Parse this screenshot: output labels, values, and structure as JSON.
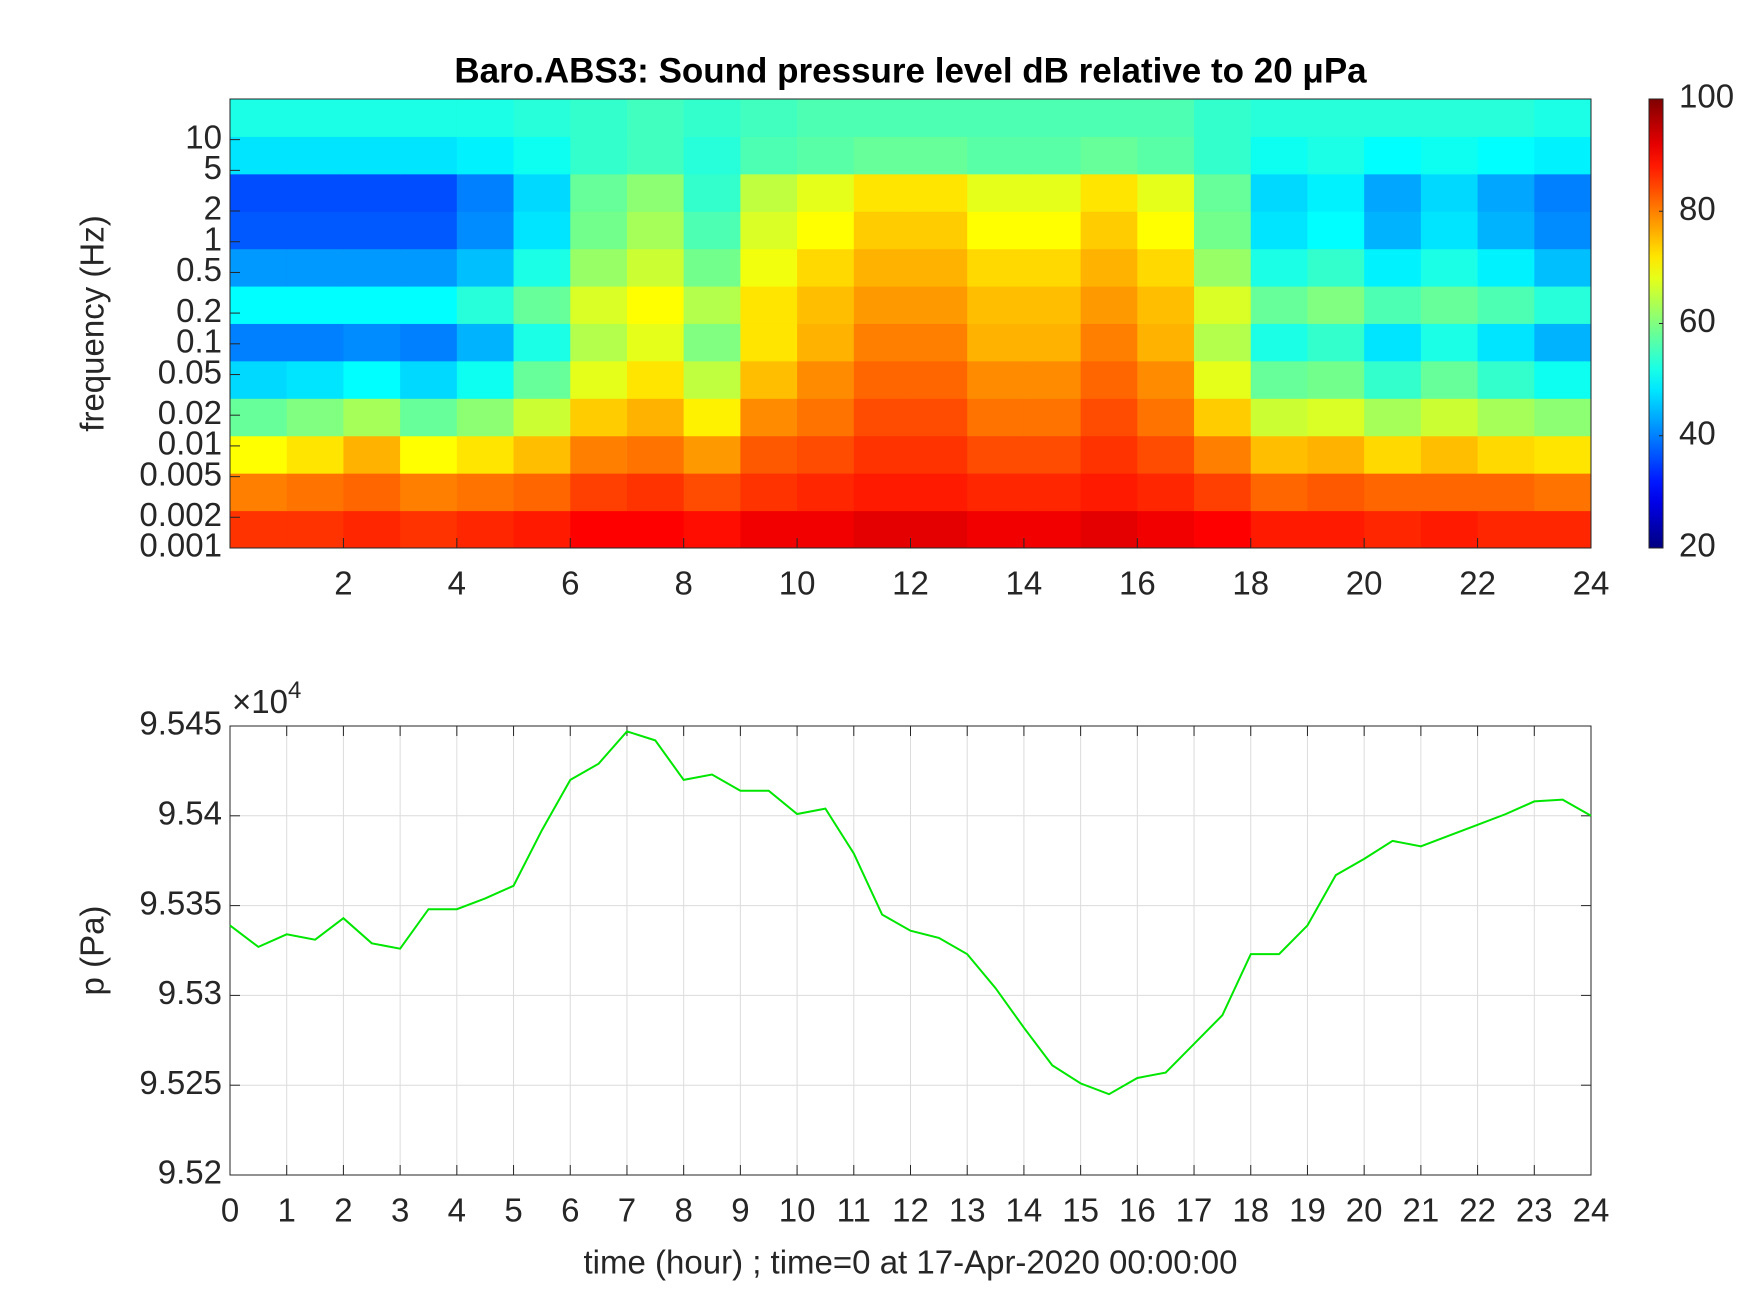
{
  "chart_data": [
    {
      "type": "heatmap",
      "title": "Baro.ABS3: Sound pressure level dB relative to 20 μPa",
      "ylabel": "frequency (Hz)",
      "ylog": true,
      "colormap": "jet",
      "x": [
        0.5,
        1.5,
        2.5,
        3.5,
        4.5,
        5.5,
        6.5,
        7.5,
        8.5,
        9.5,
        10.5,
        11.5,
        12.5,
        13.5,
        14.5,
        15.5,
        16.5,
        17.5,
        18.5,
        19.5,
        20.5,
        21.5,
        22.5,
        23.5
      ],
      "y": [
        0.00152,
        0.00355,
        0.00824,
        0.0192,
        0.0446,
        0.104,
        0.241,
        0.561,
        1.3,
        3.03,
        7.05,
        16.4
      ],
      "z": [
        [
          86,
          86,
          87,
          86,
          87,
          88,
          90,
          90,
          89,
          91,
          91,
          92,
          92,
          91,
          91,
          92,
          91,
          90,
          88,
          88,
          87,
          88,
          87,
          87
        ],
        [
          80,
          81,
          82,
          80,
          81,
          82,
          85,
          86,
          84,
          86,
          87,
          88,
          88,
          87,
          87,
          88,
          87,
          85,
          82,
          83,
          82,
          82,
          82,
          81
        ],
        [
          70,
          72,
          76,
          70,
          72,
          75,
          80,
          81,
          78,
          83,
          84,
          86,
          86,
          84,
          84,
          86,
          84,
          80,
          75,
          76,
          73,
          75,
          73,
          72
        ],
        [
          58,
          60,
          63,
          58,
          61,
          66,
          74,
          76,
          71,
          79,
          81,
          84,
          84,
          81,
          81,
          84,
          81,
          74,
          66,
          67,
          63,
          66,
          63,
          61
        ],
        [
          47,
          48,
          50,
          47,
          51,
          58,
          68,
          72,
          65,
          75,
          79,
          82,
          82,
          79,
          79,
          82,
          79,
          68,
          58,
          59,
          54,
          58,
          54,
          51
        ],
        [
          40,
          40,
          41,
          40,
          44,
          52,
          64,
          68,
          60,
          72,
          76,
          80,
          80,
          76,
          76,
          80,
          76,
          64,
          52,
          54,
          48,
          52,
          48,
          44
        ],
        [
          50,
          50,
          50,
          50,
          53,
          58,
          67,
          70,
          64,
          72,
          75,
          78,
          78,
          75,
          75,
          78,
          75,
          67,
          58,
          60,
          56,
          58,
          56,
          53
        ],
        [
          42,
          42,
          42,
          42,
          45,
          52,
          62,
          66,
          59,
          69,
          73,
          76,
          76,
          73,
          73,
          76,
          73,
          62,
          52,
          54,
          49,
          52,
          49,
          45
        ],
        [
          37,
          37,
          37,
          37,
          41,
          48,
          59,
          63,
          56,
          67,
          70,
          74,
          74,
          70,
          70,
          74,
          70,
          59,
          48,
          50,
          44,
          48,
          44,
          41
        ],
        [
          36,
          36,
          36,
          36,
          40,
          47,
          58,
          61,
          54,
          65,
          68,
          72,
          72,
          68,
          68,
          72,
          68,
          58,
          47,
          49,
          43,
          47,
          43,
          40
        ],
        [
          48,
          48,
          48,
          48,
          49,
          51,
          54,
          55,
          53,
          56,
          57,
          58,
          58,
          57,
          57,
          58,
          57,
          54,
          51,
          52,
          50,
          51,
          50,
          49
        ],
        [
          52,
          52,
          52,
          52,
          52,
          53,
          54,
          55,
          54,
          55,
          56,
          56,
          56,
          56,
          56,
          56,
          56,
          54,
          53,
          53,
          53,
          53,
          53,
          52
        ]
      ],
      "xlim": [
        0,
        24
      ],
      "xticks": [
        2,
        4,
        6,
        8,
        10,
        12,
        14,
        16,
        18,
        20,
        22,
        24
      ],
      "ylim": [
        0.001,
        25
      ],
      "yticks": [
        0.001,
        0.002,
        0.005,
        0.01,
        0.02,
        0.05,
        0.1,
        0.2,
        0.5,
        1,
        2,
        5,
        10
      ],
      "clim": [
        20,
        100
      ],
      "cticks": [
        20,
        40,
        60,
        80,
        100
      ]
    },
    {
      "type": "line",
      "xlabel": "time (hour) ; time=0 at 17-Apr-2020 00:00:00",
      "ylabel": "p (Pa)",
      "y_offset_label": {
        "base": "×10",
        "exponent": "4"
      },
      "grid": true,
      "x": [
        0,
        0.5,
        1,
        1.5,
        2,
        2.5,
        3,
        3.5,
        4,
        4.5,
        5,
        5.5,
        6,
        6.5,
        7,
        7.5,
        8,
        8.5,
        9,
        9.5,
        10,
        10.5,
        11,
        11.5,
        12,
        12.5,
        13,
        13.5,
        14,
        14.5,
        15,
        15.5,
        16,
        16.5,
        17,
        17.5,
        18,
        18.5,
        19,
        19.5,
        20,
        20.5,
        21,
        21.5,
        22,
        22.5,
        23,
        23.5,
        24
      ],
      "series": [
        {
          "color": "#00e600",
          "values": [
            95339,
            95327,
            95334,
            95331,
            95343,
            95329,
            95326,
            95348,
            95348,
            95354,
            95361,
            95392,
            95420,
            95429,
            95447,
            95442,
            95420,
            95423,
            95414,
            95414,
            95401,
            95404,
            95379,
            95345,
            95336,
            95332,
            95323,
            95304,
            95282,
            95261,
            95251,
            95245,
            95254,
            95257,
            95273,
            95289,
            95323,
            95323,
            95339,
            95367,
            95376,
            95386,
            95383,
            95389,
            95395,
            95401,
            95408,
            95409,
            95400
          ]
        }
      ],
      "xlim": [
        0,
        24
      ],
      "xticks": [
        0,
        1,
        2,
        3,
        4,
        5,
        6,
        7,
        8,
        9,
        10,
        11,
        12,
        13,
        14,
        15,
        16,
        17,
        18,
        19,
        20,
        21,
        22,
        23,
        24
      ],
      "ylim": [
        95200,
        95450
      ],
      "yticks": [
        {
          "value": 95200,
          "label": "9.52"
        },
        {
          "value": 95250,
          "label": "9.525"
        },
        {
          "value": 95300,
          "label": "9.53"
        },
        {
          "value": 95350,
          "label": "9.535"
        },
        {
          "value": 95400,
          "label": "9.54"
        },
        {
          "value": 95450,
          "label": "9.545"
        }
      ]
    }
  ]
}
